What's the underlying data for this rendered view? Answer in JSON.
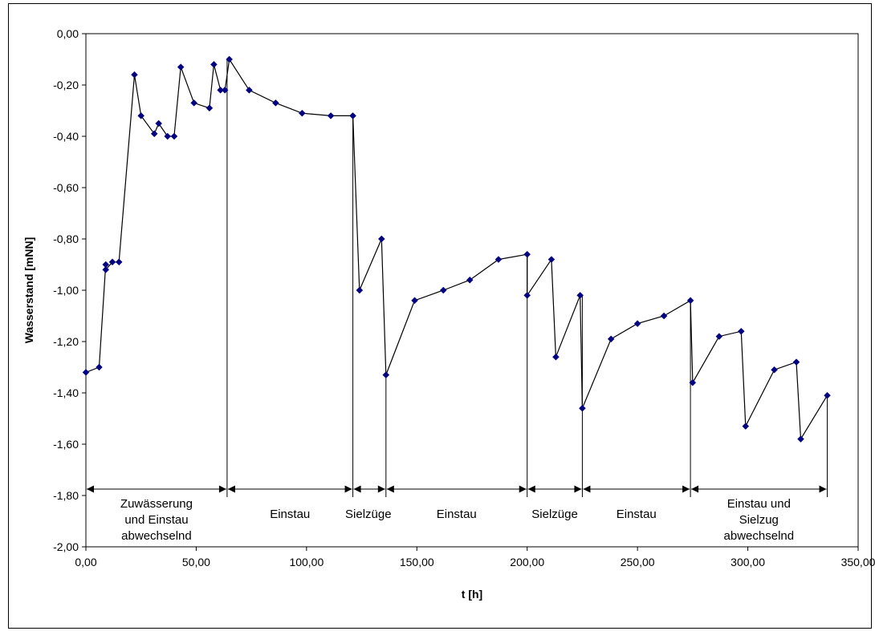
{
  "chart_data": {
    "type": "line",
    "title": "",
    "xlabel": "t [h]",
    "ylabel": "Wasserstand [mNN]",
    "xlim": [
      0,
      350
    ],
    "ylim": [
      -2.0,
      0.0
    ],
    "x_ticks": [
      0,
      50,
      100,
      150,
      200,
      250,
      300,
      350
    ],
    "x_tick_labels": [
      "0,00",
      "50,00",
      "100,00",
      "150,00",
      "200,00",
      "250,00",
      "300,00",
      "350,00"
    ],
    "y_ticks": [
      0,
      -0.2,
      -0.4,
      -0.6,
      -0.8,
      -1.0,
      -1.2,
      -1.4,
      -1.6,
      -1.8,
      -2.0
    ],
    "y_tick_labels": [
      "0,00",
      "-0,20",
      "-0,40",
      "-0,60",
      "-0,80",
      "-1,00",
      "-1,20",
      "-1,40",
      "-1,60",
      "-1,80",
      "-2,00"
    ],
    "grid": false,
    "legend": "none",
    "line_color": "#000000",
    "marker_color": "#000080",
    "series": [
      {
        "x": [
          0,
          6,
          9,
          9,
          12,
          15,
          22,
          25,
          31,
          33,
          37,
          40,
          43,
          49,
          56,
          58,
          61,
          63,
          65,
          74,
          86,
          98,
          111,
          121,
          124,
          134,
          136,
          149,
          162,
          174,
          187,
          200,
          200,
          211,
          213,
          224,
          225,
          238,
          250,
          262,
          274,
          275,
          287,
          297,
          299,
          312,
          322,
          324,
          336
        ],
        "values": [
          -1.32,
          -1.3,
          -0.9,
          -0.92,
          -0.89,
          -0.89,
          -0.16,
          -0.32,
          -0.39,
          -0.35,
          -0.4,
          -0.4,
          -0.13,
          -0.27,
          -0.29,
          -0.12,
          -0.22,
          -0.22,
          -0.1,
          -0.22,
          -0.27,
          -0.31,
          -0.32,
          -0.32,
          -1.0,
          -0.8,
          -1.33,
          -1.04,
          -1.0,
          -0.96,
          -0.88,
          -0.86,
          -1.02,
          -0.88,
          -1.26,
          -1.02,
          -1.46,
          -1.19,
          -1.13,
          -1.1,
          -1.04,
          -1.36,
          -1.18,
          -1.16,
          -1.53,
          -1.31,
          -1.28,
          -1.58,
          -1.41
        ]
      }
    ],
    "phase_dividers": [
      64,
      121,
      136,
      200,
      225,
      274,
      336
    ],
    "phase_arrow_y": -1.775,
    "phases": [
      {
        "from": 0,
        "to": 64,
        "lines": [
          "Zuwässerung",
          "und Einstau",
          "abwechselnd"
        ]
      },
      {
        "from": 64,
        "to": 121,
        "lines": [
          "Einstau"
        ]
      },
      {
        "from": 121,
        "to": 136,
        "lines": []
      },
      {
        "from": 136,
        "to": 200,
        "lines": [
          "Einstau"
        ]
      },
      {
        "from": 200,
        "to": 225,
        "lines": []
      },
      {
        "from": 225,
        "to": 274,
        "lines": [
          "Einstau"
        ]
      },
      {
        "from": 274,
        "to": 336,
        "lines": [
          "Einstau und",
          "Sielzug",
          "abwechselnd"
        ]
      }
    ],
    "annotations": [
      {
        "text": "Sielzüge",
        "x": 128
      },
      {
        "text": "Sielzüge",
        "x": 212.5
      }
    ]
  }
}
